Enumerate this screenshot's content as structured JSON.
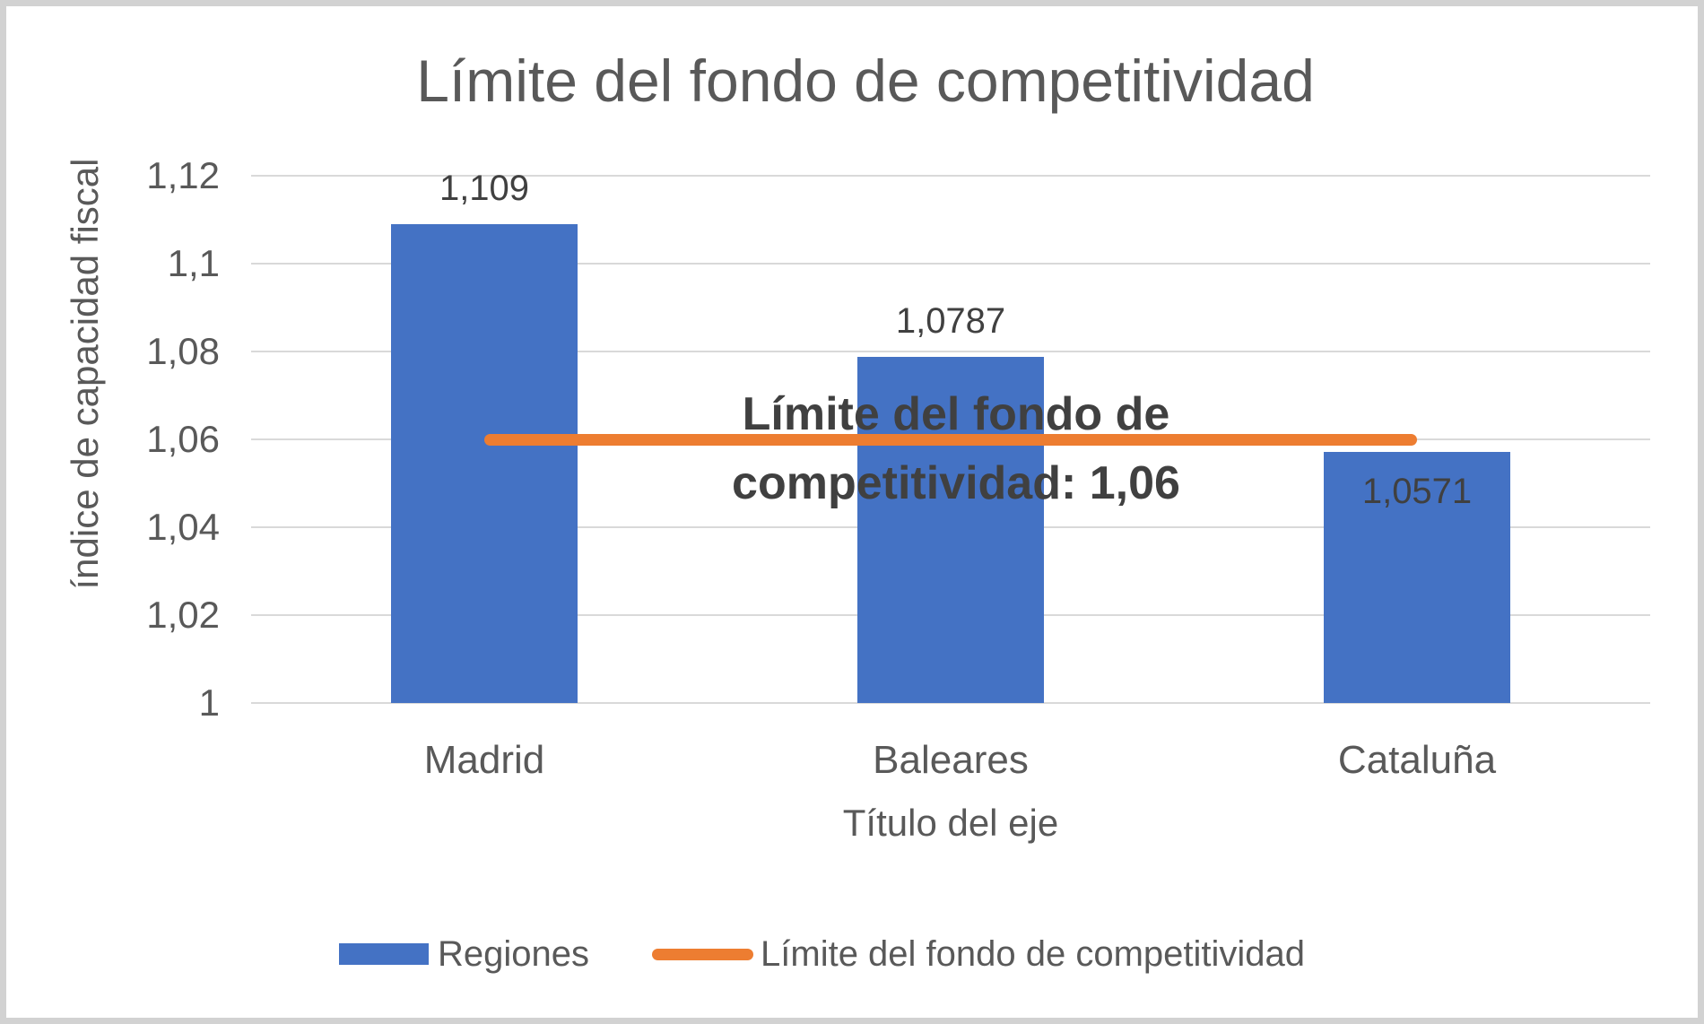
{
  "frame": {
    "border_color": "#d2d2d2",
    "background": "#ffffff"
  },
  "chart_data": {
    "type": "bar",
    "title": "Límite del fondo de competitividad",
    "categories": [
      "Madrid",
      "Baleares",
      "Cataluña"
    ],
    "series": [
      {
        "name": "Regiones",
        "type": "bar",
        "color": "#4472C4",
        "values": [
          1.109,
          1.0787,
          1.0571
        ],
        "value_labels": [
          "1,109",
          "1,0787",
          "1,0571"
        ],
        "label_placement": [
          "above",
          "above",
          "inside"
        ]
      },
      {
        "name": "Límite del fondo de competitividad",
        "type": "line",
        "color": "#ED7D31",
        "values": [
          1.06,
          1.06,
          1.06
        ]
      }
    ],
    "annotation": {
      "line1": "Límite del fondo de",
      "line2": "competitividad: 1,06"
    },
    "xlabel": "Título del eje",
    "ylabel": "índice de capacidad fiscal",
    "ylim": [
      1,
      1.12
    ],
    "yticks": {
      "values": [
        1,
        1.02,
        1.04,
        1.06,
        1.08,
        1.1,
        1.12
      ],
      "labels": [
        "1",
        "1,02",
        "1,04",
        "1,06",
        "1,08",
        "1,1",
        "1,12"
      ]
    },
    "grid": true,
    "legend_position": "bottom",
    "colors": {
      "gridline": "#d9d9d9",
      "axis_text": "#595959",
      "title_text": "#595959",
      "data_label_text": "#404040",
      "annotation_text": "#404040"
    }
  }
}
